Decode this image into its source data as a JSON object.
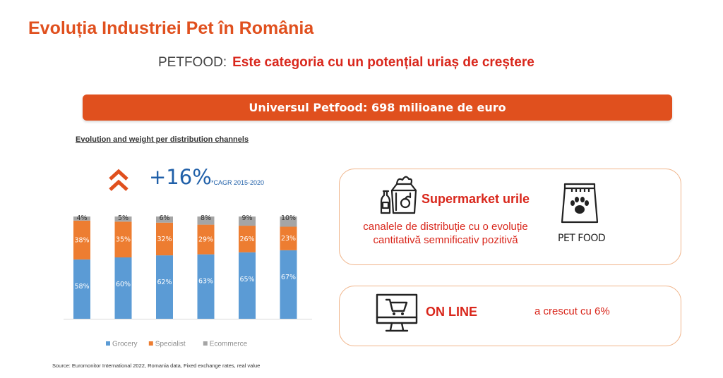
{
  "header": {
    "title": "Evoluția Industriei Pet în România",
    "subtitle_prefix": "PETFOOD:",
    "subtitle_rest": "Este categoria cu un potențial uriaș de creștere"
  },
  "banner": {
    "text": "Universul Petfood: 698 milioane de euro"
  },
  "chart_caption": "Evolution and weight per distribution channels",
  "cagr": {
    "value": "+16%",
    "note": "*CAGR 2015-2020"
  },
  "chart_data": {
    "type": "bar",
    "stacked": true,
    "percent": true,
    "categories": [
      "",
      "",
      "",
      "",
      "",
      ""
    ],
    "ylim": [
      0,
      100
    ],
    "grid": false,
    "legend_position": "bottom",
    "series": [
      {
        "name": "Grocery",
        "color": "#5b9bd5",
        "values": [
          58,
          60,
          62,
          63,
          65,
          67
        ],
        "labels": [
          "58%",
          "60%",
          "62%",
          "63%",
          "65%",
          "67%"
        ]
      },
      {
        "name": "Specialist",
        "color": "#ed7d31",
        "values": [
          38,
          35,
          32,
          29,
          26,
          23
        ],
        "labels": [
          "38%",
          "35%",
          "32%",
          "29%",
          "26%",
          "23%"
        ]
      },
      {
        "name": "Ecommerce",
        "color": "#a5a5a5",
        "values": [
          4,
          5,
          6,
          8,
          9,
          10
        ],
        "labels": [
          "4%",
          "5%",
          "6%",
          "8%",
          "9%",
          "10%"
        ]
      }
    ]
  },
  "source": "Source: Euromonitor International 2022, Romania data, Fixed exchange rates, real value",
  "supermarket": {
    "title": "Supermarket urile",
    "description": "canalele de distribuție cu o evoluție cantitativă semnificativ  pozitivă",
    "pet_food_label": "PET FOOD"
  },
  "online": {
    "title": "ON LINE",
    "description": "a crescut cu 6%"
  },
  "icons": {
    "up": "double-chevron-up-icon",
    "grocery": "grocery-bag-icon",
    "pet_food": "pet-food-bag-icon",
    "online": "computer-cart-icon"
  },
  "colors": {
    "accent": "#e0501e",
    "headline_red": "#d9271c",
    "blue": "#1f5fa8",
    "card_border": "#f0b48a"
  }
}
